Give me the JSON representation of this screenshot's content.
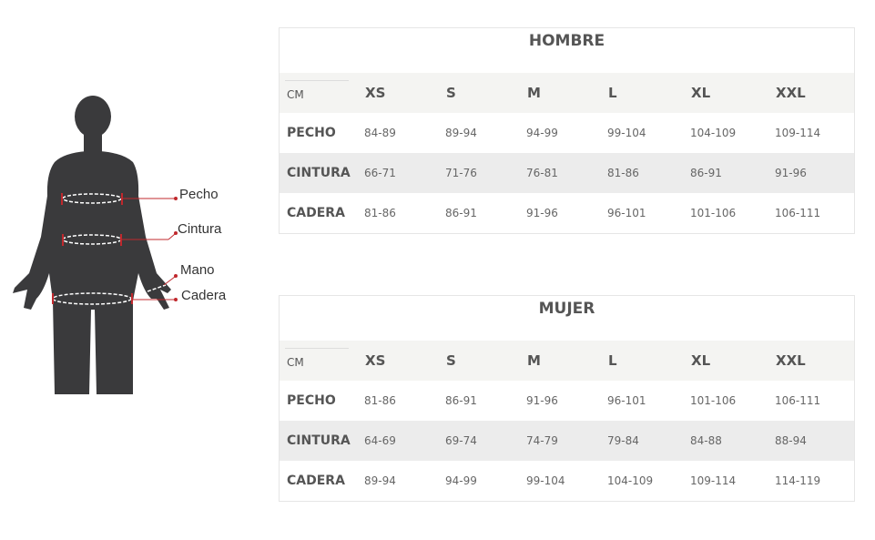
{
  "figure": {
    "labels": [
      "Pecho",
      "Cintura",
      "Mano",
      "Cadera"
    ],
    "accent": "#c0282d",
    "body_color": "#3a3a3c"
  },
  "tables": [
    {
      "title": "HOMBRE",
      "unit": "CM",
      "sizes": [
        "XS",
        "S",
        "M",
        "L",
        "XL",
        "XXL"
      ],
      "rows": [
        {
          "label": "PECHO",
          "values": [
            "84-89",
            "89-94",
            "94-99",
            "99-104",
            "104-109",
            "109-114"
          ]
        },
        {
          "label": "CINTURA",
          "values": [
            "66-71",
            "71-76",
            "76-81",
            "81-86",
            "86-91",
            "91-96"
          ]
        },
        {
          "label": "CADERA",
          "values": [
            "81-86",
            "86-91",
            "91-96",
            "96-101",
            "101-106",
            "106-111"
          ]
        }
      ]
    },
    {
      "title": "MUJER",
      "unit": "CM",
      "sizes": [
        "XS",
        "S",
        "M",
        "L",
        "XL",
        "XXL"
      ],
      "rows": [
        {
          "label": "PECHO",
          "values": [
            "81-86",
            "86-91",
            "91-96",
            "96-101",
            "101-106",
            "106-111"
          ]
        },
        {
          "label": "CINTURA",
          "values": [
            "64-69",
            "69-74",
            "74-79",
            "79-84",
            "84-88",
            "88-94"
          ]
        },
        {
          "label": "CADERA",
          "values": [
            "89-94",
            "94-99",
            "99-104",
            "104-109",
            "109-114",
            "114-119"
          ]
        }
      ]
    }
  ]
}
